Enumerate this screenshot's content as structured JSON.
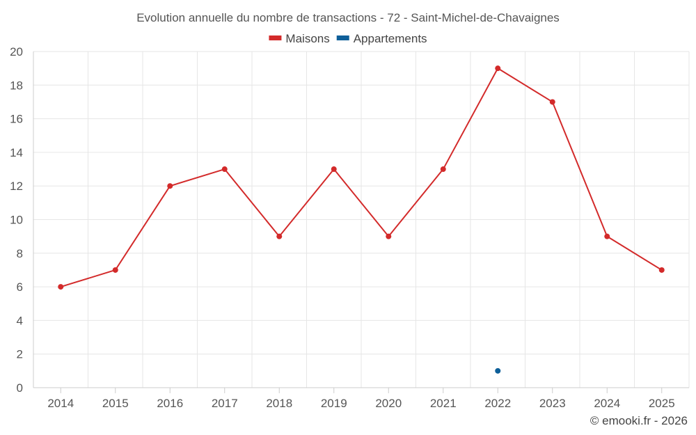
{
  "chart_data": {
    "type": "line",
    "title": "Evolution annuelle du nombre de transactions - 72 - Saint-Michel-de-Chavaignes",
    "categories": [
      "2014",
      "2015",
      "2016",
      "2017",
      "2018",
      "2019",
      "2020",
      "2021",
      "2022",
      "2023",
      "2024",
      "2025"
    ],
    "series": [
      {
        "name": "Maisons",
        "color": "#d32a2a",
        "values": [
          6,
          7,
          12,
          13,
          9,
          13,
          9,
          13,
          19,
          17,
          9,
          7
        ]
      },
      {
        "name": "Appartements",
        "color": "#0e5f99",
        "values": [
          null,
          null,
          null,
          null,
          null,
          null,
          null,
          null,
          1,
          null,
          null,
          null
        ]
      }
    ],
    "ylim": [
      0,
      20
    ],
    "yticks": [
      0,
      2,
      4,
      6,
      8,
      10,
      12,
      14,
      16,
      18,
      20
    ],
    "grid": true,
    "legend_position": "top-center"
  },
  "credit": "© emooki.fr - 2026"
}
